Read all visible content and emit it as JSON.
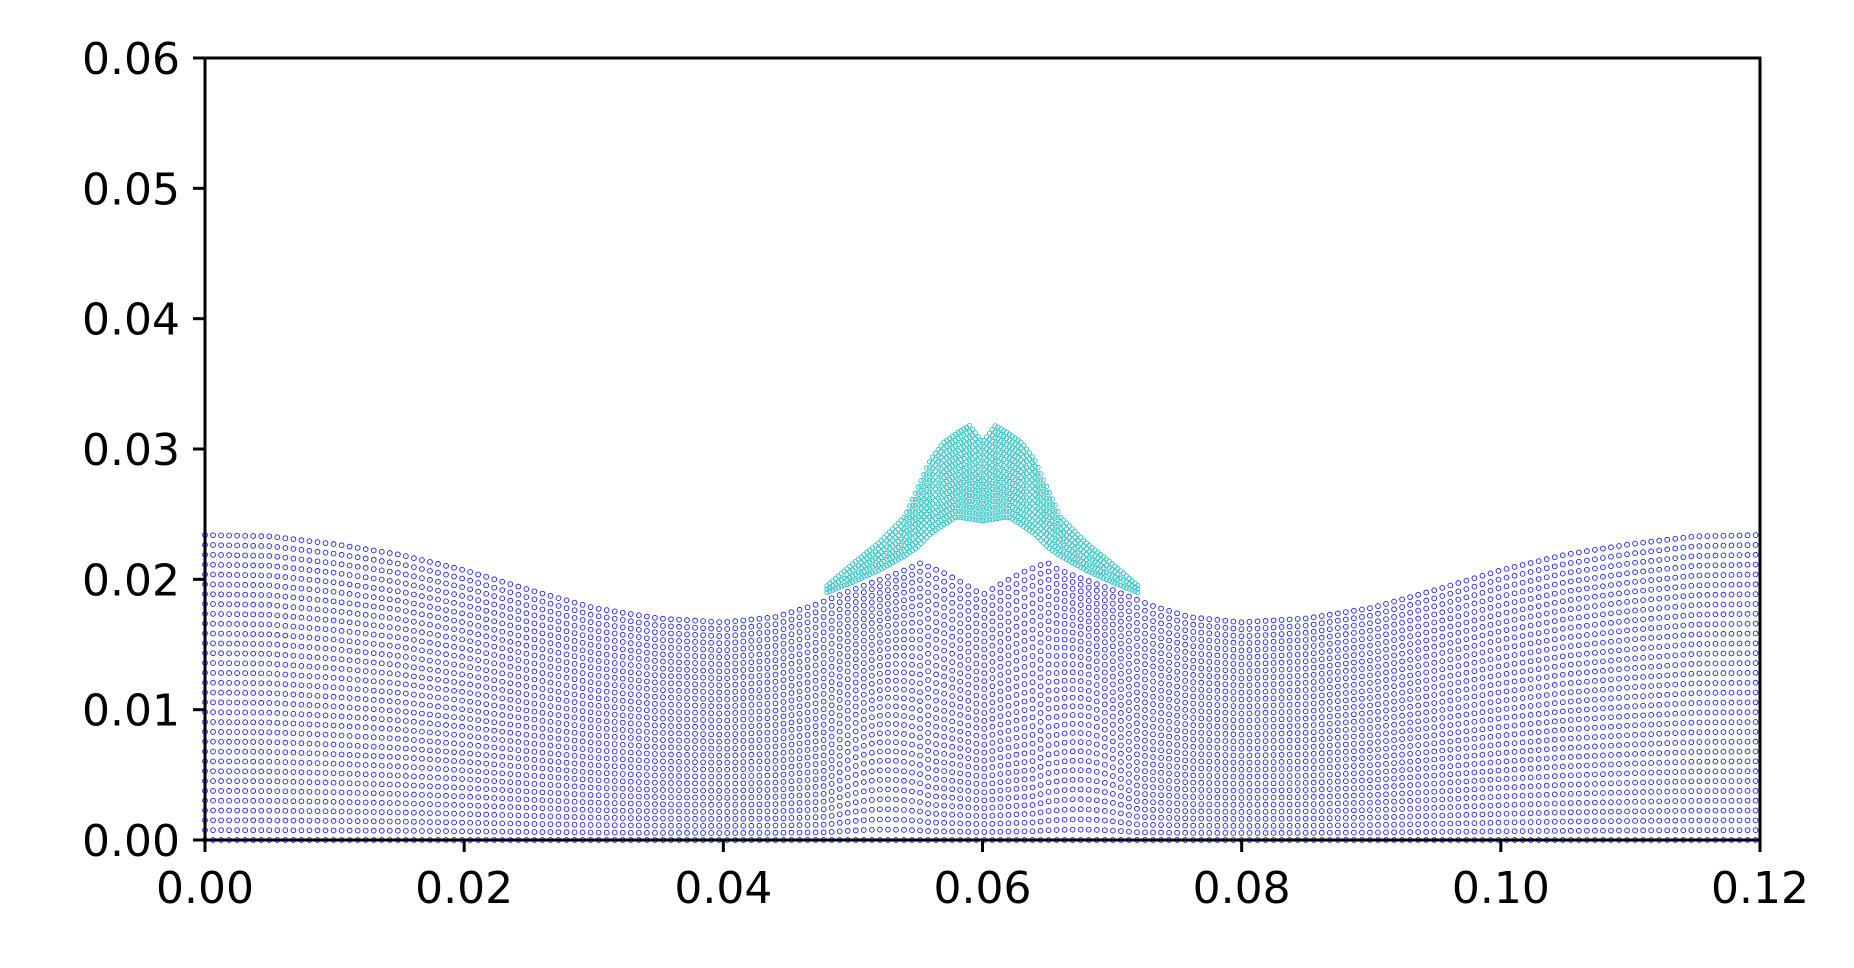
{
  "chart_data": {
    "type": "scatter",
    "title": "",
    "xlabel": "",
    "ylabel": "",
    "xlim": [
      0,
      0.12
    ],
    "ylim": [
      0,
      0.06
    ],
    "x_ticks": [
      "0.00",
      "0.02",
      "0.04",
      "0.06",
      "0.08",
      "0.10",
      "0.12"
    ],
    "y_ticks": [
      "0.00",
      "0.01",
      "0.02",
      "0.03",
      "0.04",
      "0.05",
      "0.06"
    ],
    "grid": false,
    "legend": "none",
    "series": [
      {
        "color": "#1a1aff",
        "marker": "hollow circle",
        "description_free": true,
        "rows": 32,
        "x_spacing": 0.00062,
        "top_surface": {
          "x": [
            0,
            0.005,
            0.01,
            0.015,
            0.02,
            0.025,
            0.03,
            0.035,
            0.04,
            0.044,
            0.047,
            0.05,
            0.053,
            0.0545,
            0.055,
            0.057,
            0.0585,
            0.06,
            0.0615,
            0.063,
            0.065,
            0.0655,
            0.067,
            0.07,
            0.073,
            0.076,
            0.08,
            0.085,
            0.09,
            0.095,
            0.1,
            0.105,
            0.11,
            0.115,
            0.12
          ],
          "y": [
            0.0234,
            0.0233,
            0.0227,
            0.0219,
            0.0207,
            0.0192,
            0.0178,
            0.017,
            0.0167,
            0.0171,
            0.018,
            0.0192,
            0.0203,
            0.0209,
            0.0213,
            0.0205,
            0.0197,
            0.0188,
            0.0197,
            0.0205,
            0.0213,
            0.0209,
            0.0203,
            0.0192,
            0.018,
            0.0171,
            0.0167,
            0.017,
            0.0178,
            0.0192,
            0.0207,
            0.0219,
            0.0227,
            0.0233,
            0.0234
          ]
        }
      },
      {
        "color": "#2ec4c4",
        "marker": "hollow circle",
        "x_range": [
          0.048,
          0.072
        ],
        "top_surface": {
          "x": [
            0.048,
            0.05,
            0.052,
            0.054,
            0.055,
            0.056,
            0.057,
            0.058,
            0.059,
            0.06,
            0.061,
            0.062,
            0.063,
            0.064,
            0.065,
            0.066,
            0.068,
            0.07,
            0.072
          ],
          "y": [
            0.0195,
            0.0212,
            0.0228,
            0.0248,
            0.027,
            0.0292,
            0.0305,
            0.0312,
            0.0318,
            0.0305,
            0.0318,
            0.0312,
            0.0305,
            0.0292,
            0.027,
            0.0248,
            0.0228,
            0.0212,
            0.0195
          ]
        },
        "bottom_surface": {
          "x": [
            0.048,
            0.05,
            0.052,
            0.054,
            0.055,
            0.056,
            0.057,
            0.058,
            0.06,
            0.062,
            0.063,
            0.064,
            0.065,
            0.066,
            0.068,
            0.07,
            0.072
          ],
          "y": [
            0.019,
            0.0198,
            0.0207,
            0.0218,
            0.0225,
            0.0235,
            0.0242,
            0.0248,
            0.0245,
            0.0248,
            0.0242,
            0.0235,
            0.0225,
            0.0218,
            0.0207,
            0.0198,
            0.019
          ]
        }
      }
    ]
  }
}
